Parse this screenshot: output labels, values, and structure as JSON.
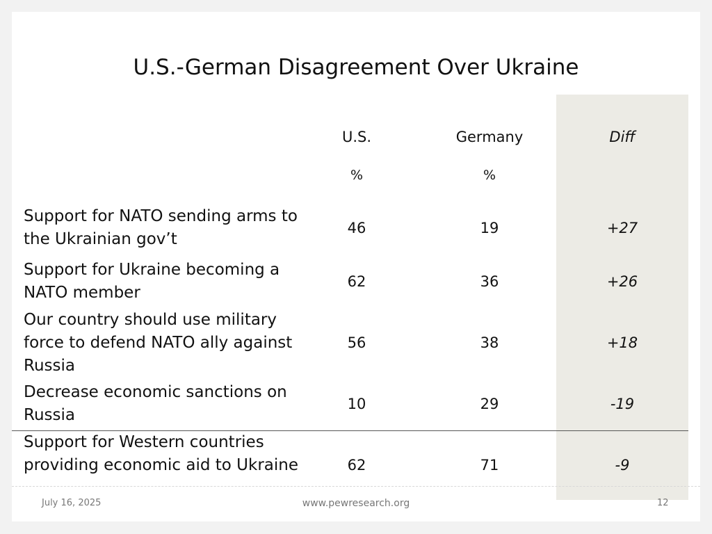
{
  "title": "U.S.-German Disagreement Over Ukraine",
  "columns": {
    "us": "U.S.",
    "germany": "Germany",
    "diff": "Diff",
    "us_unit": "%",
    "germany_unit": "%"
  },
  "rows": [
    {
      "label": "Support for NATO sending arms to the Ukrainian gov’t",
      "us": "46",
      "germany": "19",
      "diff": "+27"
    },
    {
      "label": "Support for Ukraine becoming a NATO member",
      "us": "62",
      "germany": "36",
      "diff": "+26"
    },
    {
      "label": "Our country should use military force to defend NATO ally against Russia",
      "us": "56",
      "germany": "38",
      "diff": "+18"
    },
    {
      "label": "Decrease economic sanctions on Russia",
      "us": "10",
      "germany": "29",
      "diff": "-19"
    },
    {
      "label": "Support for Western countries providing economic aid to Ukraine",
      "us": "62",
      "germany": "71",
      "diff": "-9"
    }
  ],
  "footer": {
    "date": "July 16, 2025",
    "url": "www.pewresearch.org",
    "page": "12"
  },
  "colors": {
    "diff_band": "#ecebe5",
    "background": "#f2f2f2"
  },
  "chart_data": {
    "type": "table",
    "title": "U.S.-German Disagreement Over Ukraine",
    "columns": [
      "U.S.",
      "Germany",
      "Diff"
    ],
    "units": [
      "%",
      "%",
      ""
    ],
    "categories": [
      "Support for NATO sending arms to the Ukrainian gov’t",
      "Support for Ukraine becoming a NATO member",
      "Our country should use military force to defend NATO ally against Russia",
      "Decrease economic sanctions on Russia",
      "Support for Western countries providing economic aid to Ukraine"
    ],
    "series": [
      {
        "name": "U.S.",
        "values": [
          46,
          62,
          56,
          10,
          62
        ]
      },
      {
        "name": "Germany",
        "values": [
          19,
          36,
          38,
          29,
          71
        ]
      },
      {
        "name": "Diff",
        "values": [
          27,
          26,
          18,
          -19,
          -9
        ]
      }
    ]
  }
}
